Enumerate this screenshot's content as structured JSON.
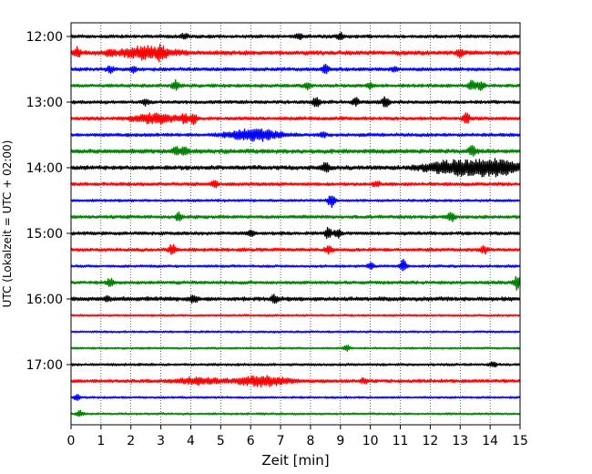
{
  "chart_data": {
    "type": "line",
    "subtype": "helicorder-seismogram",
    "title": "",
    "xlabel": "Zeit  [min]",
    "ylabel": "UTC (Lokalzeit = UTC + 02:00)",
    "xlim": [
      0,
      15
    ],
    "x_ticks": [
      "0",
      "1",
      "2",
      "3",
      "4",
      "5",
      "6",
      "7",
      "8",
      "9",
      "10",
      "11",
      "12",
      "13",
      "14",
      "15"
    ],
    "grid": "vertical dotted at each minute",
    "trace_interval_minutes": 15,
    "y_tick_labels": [
      "12:00",
      "13:00",
      "14:00",
      "15:00",
      "16:00",
      "17:00"
    ],
    "color_cycle": [
      "#000000",
      "#ff0000",
      "#0000ff",
      "#008000"
    ],
    "traces": [
      {
        "start": "12:00",
        "amplitude": 2.0,
        "events": [
          {
            "t": 3.8,
            "a": 3
          },
          {
            "t": 7.6,
            "a": 3
          },
          {
            "t": 9.0,
            "a": 3
          }
        ]
      },
      {
        "start": "12:15",
        "amplitude": 2.5,
        "events": [
          {
            "t": 0.2,
            "a": 5
          },
          {
            "t": 1.3,
            "a": 3
          },
          {
            "t": 2.5,
            "a": 6,
            "w": 0.6
          },
          {
            "t": 3.0,
            "a": 5
          },
          {
            "t": 13.0,
            "a": 4
          }
        ]
      },
      {
        "start": "12:30",
        "amplitude": 2.0,
        "events": [
          {
            "t": 1.3,
            "a": 3
          },
          {
            "t": 2.1,
            "a": 3
          },
          {
            "t": 8.5,
            "a": 5
          },
          {
            "t": 10.8,
            "a": 3
          }
        ]
      },
      {
        "start": "12:45",
        "amplitude": 2.0,
        "events": [
          {
            "t": 3.5,
            "a": 5
          },
          {
            "t": 7.9,
            "a": 3
          },
          {
            "t": 10.0,
            "a": 3
          },
          {
            "t": 13.4,
            "a": 5
          },
          {
            "t": 13.7,
            "a": 5
          }
        ]
      },
      {
        "start": "13:00",
        "amplitude": 2.0,
        "events": [
          {
            "t": 2.5,
            "a": 3
          },
          {
            "t": 8.2,
            "a": 5
          },
          {
            "t": 9.5,
            "a": 4
          },
          {
            "t": 10.5,
            "a": 5
          }
        ]
      },
      {
        "start": "13:15",
        "amplitude": 2.0,
        "events": [
          {
            "t": 2.8,
            "a": 5,
            "w": 0.5
          },
          {
            "t": 3.8,
            "a": 5
          },
          {
            "t": 4.1,
            "a": 5
          },
          {
            "t": 13.2,
            "a": 5
          }
        ]
      },
      {
        "start": "13:30",
        "amplitude": 2.0,
        "events": [
          {
            "t": 6.1,
            "a": 6,
            "w": 0.6
          },
          {
            "t": 8.4,
            "a": 3
          }
        ]
      },
      {
        "start": "13:45",
        "amplitude": 2.5,
        "events": [
          {
            "t": 3.5,
            "a": 4
          },
          {
            "t": 3.8,
            "a": 4
          },
          {
            "t": 13.4,
            "a": 5
          }
        ]
      },
      {
        "start": "14:00",
        "amplitude": 2.5,
        "events": [
          {
            "t": 8.5,
            "a": 5
          },
          {
            "t": 12.6,
            "a": 6,
            "w": 0.6
          },
          {
            "t": 14.1,
            "a": 8,
            "w": 0.7
          }
        ]
      },
      {
        "start": "14:15",
        "amplitude": 2.0,
        "events": [
          {
            "t": 4.8,
            "a": 3
          },
          {
            "t": 10.2,
            "a": 3
          }
        ]
      },
      {
        "start": "14:30",
        "amplitude": 1.5,
        "events": [
          {
            "t": 8.7,
            "a": 7
          }
        ]
      },
      {
        "start": "14:45",
        "amplitude": 2.0,
        "events": [
          {
            "t": 3.6,
            "a": 4
          },
          {
            "t": 12.7,
            "a": 5
          }
        ]
      },
      {
        "start": "15:00",
        "amplitude": 2.0,
        "events": [
          {
            "t": 6.0,
            "a": 3
          },
          {
            "t": 8.6,
            "a": 5
          },
          {
            "t": 8.9,
            "a": 4
          }
        ]
      },
      {
        "start": "15:15",
        "amplitude": 2.0,
        "events": [
          {
            "t": 3.4,
            "a": 6
          },
          {
            "t": 8.6,
            "a": 4
          },
          {
            "t": 13.8,
            "a": 4
          }
        ]
      },
      {
        "start": "15:30",
        "amplitude": 1.5,
        "events": [
          {
            "t": 11.1,
            "a": 7
          },
          {
            "t": 10.0,
            "a": 3
          }
        ]
      },
      {
        "start": "15:45",
        "amplitude": 2.0,
        "events": [
          {
            "t": 1.3,
            "a": 4
          },
          {
            "t": 14.9,
            "a": 7
          }
        ]
      },
      {
        "start": "16:00",
        "amplitude": 2.5,
        "events": [
          {
            "t": 1.2,
            "a": 3
          },
          {
            "t": 4.1,
            "a": 4
          },
          {
            "t": 6.8,
            "a": 4
          }
        ]
      },
      {
        "start": "16:15",
        "amplitude": 1.2,
        "events": []
      },
      {
        "start": "16:30",
        "amplitude": 1.2,
        "events": []
      },
      {
        "start": "16:45",
        "amplitude": 1.2,
        "events": [
          {
            "t": 9.2,
            "a": 3
          }
        ]
      },
      {
        "start": "17:00",
        "amplitude": 1.5,
        "events": [
          {
            "t": 14.1,
            "a": 3
          }
        ]
      },
      {
        "start": "17:15",
        "amplitude": 2.0,
        "events": [
          {
            "t": 4.2,
            "a": 3,
            "w": 0.5
          },
          {
            "t": 6.4,
            "a": 5,
            "w": 0.6
          },
          {
            "t": 9.8,
            "a": 3
          }
        ]
      },
      {
        "start": "17:30",
        "amplitude": 1.2,
        "events": [
          {
            "t": 0.2,
            "a": 3
          }
        ]
      },
      {
        "start": "17:45",
        "amplitude": 1.2,
        "events": [
          {
            "t": 0.3,
            "a": 3
          }
        ]
      }
    ]
  }
}
